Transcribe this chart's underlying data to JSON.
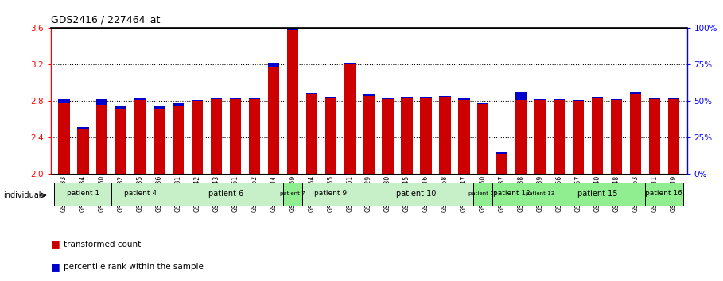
{
  "title": "GDS2416 / 227464_at",
  "samples": [
    "GSM135233",
    "GSM135234",
    "GSM135260",
    "GSM135232",
    "GSM135235",
    "GSM135236",
    "GSM135231",
    "GSM135242",
    "GSM135243",
    "GSM135251",
    "GSM135252",
    "GSM135244",
    "GSM135259",
    "GSM135254",
    "GSM135255",
    "GSM135261",
    "GSM135229",
    "GSM135230",
    "GSM135245",
    "GSM135246",
    "GSM135258",
    "GSM135247",
    "GSM135250",
    "GSM135237",
    "GSM135238",
    "GSM135239",
    "GSM135256",
    "GSM135257",
    "GSM135240",
    "GSM135248",
    "GSM135253",
    "GSM135241",
    "GSM135249"
  ],
  "red_values": [
    2.78,
    2.5,
    2.82,
    2.72,
    2.81,
    2.72,
    2.75,
    2.8,
    2.82,
    2.82,
    2.82,
    3.18,
    3.58,
    2.87,
    2.83,
    3.2,
    2.86,
    2.82,
    2.83,
    2.83,
    2.85,
    2.81,
    2.77,
    2.22,
    2.9,
    2.81,
    2.81,
    2.8,
    2.84,
    2.81,
    2.88,
    2.82,
    2.82
  ],
  "blue_tops": [
    2.82,
    2.52,
    2.76,
    2.74,
    2.83,
    2.75,
    2.78,
    2.81,
    2.83,
    2.83,
    2.83,
    3.22,
    3.6,
    2.89,
    2.85,
    3.22,
    2.88,
    2.84,
    2.85,
    2.85,
    2.86,
    2.83,
    2.78,
    2.24,
    2.81,
    2.82,
    2.82,
    2.81,
    2.85,
    2.82,
    2.9,
    2.83,
    2.83
  ],
  "patients": [
    {
      "label": "patient 1",
      "start": 0,
      "end": 2,
      "color": "#c8f0c8"
    },
    {
      "label": "patient 4",
      "start": 3,
      "end": 5,
      "color": "#c8f0c8"
    },
    {
      "label": "patient 6",
      "start": 6,
      "end": 11,
      "color": "#c8f0c8"
    },
    {
      "label": "patient 7",
      "start": 12,
      "end": 12,
      "color": "#90ee90"
    },
    {
      "label": "patient 9",
      "start": 13,
      "end": 15,
      "color": "#c8f0c8"
    },
    {
      "label": "patient 10",
      "start": 16,
      "end": 21,
      "color": "#c8f0c8"
    },
    {
      "label": "patient 11",
      "start": 22,
      "end": 22,
      "color": "#90ee90"
    },
    {
      "label": "patient 12",
      "start": 23,
      "end": 24,
      "color": "#90ee90"
    },
    {
      "label": "patient 13",
      "start": 25,
      "end": 25,
      "color": "#90ee90"
    },
    {
      "label": "patient 15",
      "start": 26,
      "end": 30,
      "color": "#90ee90"
    },
    {
      "label": "patient 16",
      "start": 31,
      "end": 32,
      "color": "#90ee90"
    }
  ],
  "ymin": 2.0,
  "ymax": 3.6,
  "y_ticks_left": [
    2.0,
    2.4,
    2.8,
    3.2,
    3.6
  ],
  "y_ticks_right": [
    0,
    25,
    50,
    75,
    100
  ],
  "right_tick_labels": [
    "0%",
    "25%",
    "50%",
    "75%",
    "100%"
  ],
  "bar_color": "#cc0000",
  "blue_color": "#0000cc",
  "bg_color": "#ffffff",
  "bar_width": 0.6
}
